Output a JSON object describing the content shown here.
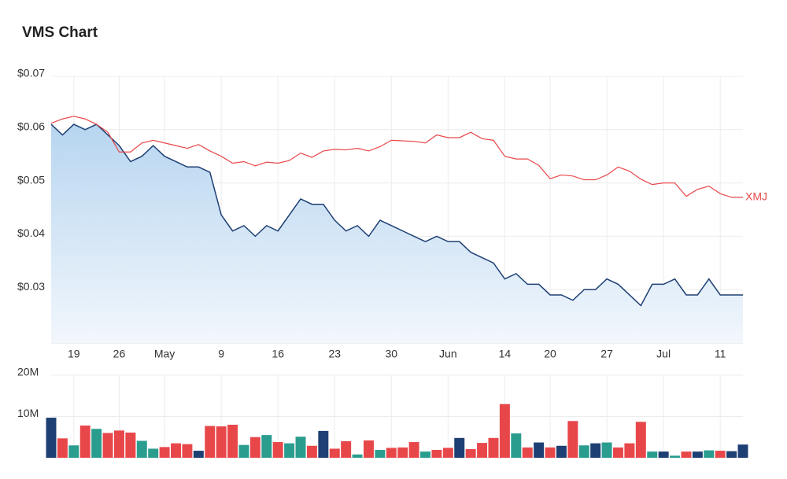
{
  "chart_data": [
    {
      "type": "line",
      "title": "VMS Chart",
      "categories": [
        null,
        null,
        "19",
        null,
        null,
        null,
        "26",
        null,
        null,
        null,
        "May",
        null,
        null,
        null,
        null,
        "9",
        null,
        null,
        null,
        null,
        "16",
        null,
        null,
        null,
        null,
        "23",
        null,
        null,
        null,
        null,
        "30",
        null,
        null,
        null,
        null,
        "Jun",
        null,
        null,
        null,
        null,
        "14",
        null,
        null,
        null,
        "20",
        null,
        null,
        null,
        null,
        "27",
        null,
        null,
        null,
        null,
        "Jul",
        null,
        null,
        null,
        null,
        "11",
        null,
        null
      ],
      "series": [
        {
          "color": "#1d3f73",
          "fill": true,
          "values": [
            0.061,
            0.059,
            0.061,
            0.06,
            0.061,
            0.059,
            0.057,
            0.054,
            0.055,
            0.057,
            0.055,
            0.054,
            0.053,
            0.053,
            0.052,
            0.044,
            0.041,
            0.042,
            0.04,
            0.042,
            0.041,
            0.044,
            0.047,
            0.046,
            0.046,
            0.043,
            0.041,
            0.042,
            0.04,
            0.043,
            0.042,
            0.041,
            0.04,
            0.039,
            0.04,
            0.039,
            0.039,
            0.037,
            0.036,
            0.035,
            0.032,
            0.033,
            0.031,
            0.031,
            0.029,
            0.029,
            0.028,
            0.03,
            0.03,
            0.032,
            0.031,
            0.029,
            0.027,
            0.031,
            0.031,
            0.032,
            0.029,
            0.029,
            0.032,
            0.029,
            0.029,
            0.029
          ]
        },
        {
          "name": "XMJ",
          "color": "#e8474a",
          "fill": false,
          "values": [
            0.0612,
            0.062,
            0.0625,
            0.062,
            0.061,
            0.0595,
            0.0558,
            0.0558,
            0.0575,
            0.058,
            0.0575,
            0.057,
            0.0565,
            0.0572,
            0.056,
            0.055,
            0.0537,
            0.054,
            0.0532,
            0.0539,
            0.0537,
            0.0542,
            0.0556,
            0.0548,
            0.056,
            0.0563,
            0.0562,
            0.0565,
            0.056,
            0.0568,
            0.058,
            0.0579,
            0.0578,
            0.0575,
            0.059,
            0.0585,
            0.0585,
            0.0595,
            0.0583,
            0.058,
            0.055,
            0.0545,
            0.0545,
            0.0533,
            0.0508,
            0.0515,
            0.0513,
            0.0506,
            0.0506,
            0.0515,
            0.053,
            0.0522,
            0.0507,
            0.0497,
            0.05,
            0.05,
            0.0475,
            0.0488,
            0.0494,
            0.048,
            0.0473,
            0.0473
          ]
        }
      ],
      "ylim": [
        0.02,
        0.07
      ],
      "yticks": [
        {
          "value": 0.03,
          "label": "$0.03"
        },
        {
          "value": 0.04,
          "label": "$0.04"
        },
        {
          "value": 0.05,
          "label": "$0.05"
        },
        {
          "value": 0.06,
          "label": "$0.06"
        },
        {
          "value": 0.07,
          "label": "$0.07"
        }
      ],
      "grid": true
    },
    {
      "type": "bar",
      "values": [
        9700000,
        4700000,
        3000000,
        7800000,
        7000000,
        6000000,
        6600000,
        6100000,
        4100000,
        2200000,
        2600000,
        3500000,
        3300000,
        1700000,
        7700000,
        7600000,
        8000000,
        3100000,
        5000000,
        5500000,
        3800000,
        3500000,
        5100000,
        2900000,
        6500000,
        2200000,
        4000000,
        800000,
        4200000,
        1900000,
        2400000,
        2500000,
        3800000,
        1500000,
        1900000,
        2400000,
        4800000,
        2100000,
        3600000,
        4800000,
        13000000,
        5900000,
        2500000,
        3700000,
        2500000,
        2900000,
        8900000,
        3000000,
        3500000,
        3700000,
        2500000,
        3500000,
        8700000,
        1500000,
        1500000,
        500000,
        1500000,
        1500000,
        1800000,
        1700000,
        1600000,
        3200000
      ],
      "colors": [
        "#1d3f73",
        "#e8474a",
        "#2a9d8f",
        "#e8474a",
        "#2a9d8f",
        "#e8474a",
        "#e8474a",
        "#e8474a",
        "#2a9d8f",
        "#2a9d8f",
        "#e8474a",
        "#e8474a",
        "#e8474a",
        "#1d3f73",
        "#e8474a",
        "#e8474a",
        "#e8474a",
        "#2a9d8f",
        "#e8474a",
        "#2a9d8f",
        "#e8474a",
        "#2a9d8f",
        "#2a9d8f",
        "#e8474a",
        "#1d3f73",
        "#e8474a",
        "#e8474a",
        "#2a9d8f",
        "#e8474a",
        "#2a9d8f",
        "#e8474a",
        "#e8474a",
        "#e8474a",
        "#2a9d8f",
        "#e8474a",
        "#e8474a",
        "#1d3f73",
        "#e8474a",
        "#e8474a",
        "#e8474a",
        "#e8474a",
        "#2a9d8f",
        "#e8474a",
        "#1d3f73",
        "#e8474a",
        "#1d3f73",
        "#e8474a",
        "#2a9d8f",
        "#1d3f73",
        "#2a9d8f",
        "#e8474a",
        "#e8474a",
        "#e8474a",
        "#2a9d8f",
        "#1d3f73",
        "#2a9d8f",
        "#e8474a",
        "#1d3f73",
        "#2a9d8f",
        "#e8474a",
        "#1d3f73",
        "#1d3f73"
      ],
      "ylim": [
        0,
        20000000
      ],
      "yticks": [
        {
          "value": 10000000,
          "label": "10M"
        },
        {
          "value": 20000000,
          "label": "20M"
        }
      ],
      "grid": true
    }
  ]
}
